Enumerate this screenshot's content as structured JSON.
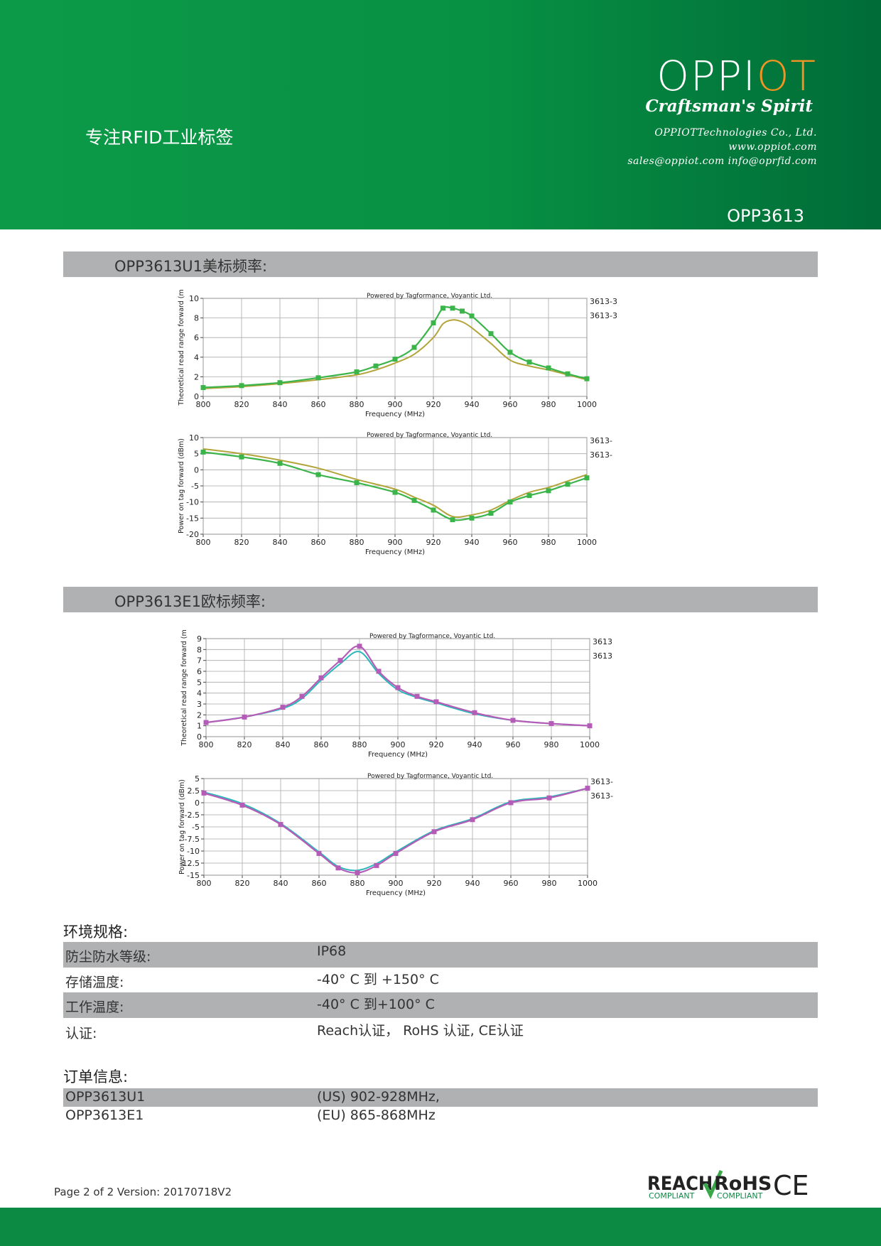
{
  "header": {
    "tagline": "专注RFID工业标签",
    "logo": {
      "part1": "OPPI",
      "part2": "OT",
      "slogan": "Craftsman's Spirit"
    },
    "company": "OPPIOTTechnologies Co., Ltd.",
    "website": "www.oppiot.com",
    "emails": "sales@oppiot.com  info@oprfid.com",
    "model": "OPP3613",
    "colors": {
      "green": "#0c9a48",
      "dark_green": "#006c38",
      "accent": "#f29423"
    }
  },
  "sections": {
    "us_title": "OPP3613U1美标频率:",
    "eu_title": "OPP3613E1欧标频率:"
  },
  "chart_data": [
    {
      "type": "line",
      "section": "US",
      "title": "Powered by Tagformance, Voyantic Ltd.",
      "xlabel": "Frequency (MHz)",
      "ylabel": "Theoretical read range forward (m",
      "xlim": [
        800,
        1000
      ],
      "ylim": [
        0,
        10
      ],
      "xticks": [
        800,
        820,
        840,
        860,
        880,
        900,
        920,
        940,
        960,
        980,
        1000
      ],
      "yticks": [
        0,
        2,
        4,
        6,
        8,
        10
      ],
      "grid": true,
      "legend": "right",
      "legend_entries": [
        "3613-3",
        "3613-3"
      ],
      "x": [
        800,
        820,
        840,
        860,
        880,
        890,
        900,
        910,
        920,
        925,
        930,
        935,
        940,
        950,
        960,
        970,
        980,
        990,
        1000
      ],
      "series": [
        {
          "color": "#3bb54a",
          "markers": true,
          "values": [
            0.9,
            1.1,
            1.4,
            1.9,
            2.5,
            3.1,
            3.8,
            5.0,
            7.5,
            9.0,
            9.0,
            8.7,
            8.2,
            6.4,
            4.5,
            3.5,
            2.9,
            2.3,
            1.8
          ]
        },
        {
          "color": "#b3a43a",
          "markers": false,
          "values": [
            0.8,
            1.0,
            1.3,
            1.7,
            2.2,
            2.7,
            3.4,
            4.3,
            6.0,
            7.4,
            7.8,
            7.6,
            7.0,
            5.4,
            3.7,
            3.1,
            2.7,
            2.2,
            1.7
          ]
        }
      ]
    },
    {
      "type": "line",
      "section": "US",
      "title": "Powered by Tagformance, Voyantic Ltd.",
      "xlabel": "Frequency (MHz)",
      "ylabel": "Power on tag forward (dBm)",
      "xlim": [
        800,
        1000
      ],
      "ylim": [
        -20,
        10
      ],
      "xticks": [
        800,
        820,
        840,
        860,
        880,
        900,
        920,
        940,
        960,
        980,
        1000
      ],
      "yticks": [
        -20,
        -15,
        -10,
        -5,
        0,
        5,
        10
      ],
      "grid": true,
      "legend": "right",
      "legend_entries": [
        "3613-",
        "3613-"
      ],
      "x": [
        800,
        820,
        840,
        860,
        880,
        900,
        910,
        920,
        930,
        940,
        950,
        960,
        970,
        980,
        990,
        1000
      ],
      "series": [
        {
          "color": "#3bb54a",
          "markers": true,
          "values": [
            5.5,
            4.0,
            2.0,
            -1.5,
            -4.0,
            -7.0,
            -9.5,
            -12.5,
            -15.5,
            -15.0,
            -13.5,
            -10.0,
            -8.0,
            -6.5,
            -4.5,
            -2.5
          ]
        },
        {
          "color": "#b3a43a",
          "markers": false,
          "values": [
            6.5,
            5.0,
            3.0,
            0.5,
            -3.0,
            -6.0,
            -8.5,
            -11.0,
            -14.5,
            -14.0,
            -12.5,
            -9.5,
            -7.0,
            -5.5,
            -3.5,
            -1.5
          ]
        }
      ]
    },
    {
      "type": "line",
      "section": "EU",
      "title": "Powered by Tagformance, Voyantic Ltd.",
      "xlabel": "Frequency (MHz)",
      "ylabel": "Theoretical read range forward (m",
      "xlim": [
        800,
        1000
      ],
      "ylim": [
        0,
        9
      ],
      "xticks": [
        800,
        820,
        840,
        860,
        880,
        900,
        920,
        940,
        960,
        980,
        1000
      ],
      "yticks": [
        0,
        1,
        2,
        3,
        4,
        5,
        6,
        7,
        8,
        9
      ],
      "grid": true,
      "legend": "right",
      "legend_entries": [
        "3613",
        "3613"
      ],
      "x": [
        800,
        820,
        840,
        850,
        860,
        870,
        880,
        890,
        900,
        910,
        920,
        940,
        960,
        980,
        1000
      ],
      "series": [
        {
          "color": "#b45cb8",
          "markers": true,
          "values": [
            1.3,
            1.8,
            2.7,
            3.7,
            5.4,
            7.0,
            8.3,
            6.0,
            4.5,
            3.7,
            3.2,
            2.2,
            1.5,
            1.2,
            1.0
          ]
        },
        {
          "color": "#2ab7b7",
          "markers": false,
          "values": [
            1.3,
            1.8,
            2.6,
            3.5,
            5.2,
            6.7,
            7.8,
            5.8,
            4.3,
            3.6,
            3.1,
            2.1,
            1.5,
            1.2,
            1.0
          ]
        }
      ]
    },
    {
      "type": "line",
      "section": "EU",
      "title": "Powered by Tagformance, Voyantic Ltd.",
      "xlabel": "Frequency (MHz)",
      "ylabel": "Power on tag forward (dBm)",
      "xlim": [
        800,
        1000
      ],
      "ylim": [
        -15,
        5
      ],
      "xticks": [
        800,
        820,
        840,
        860,
        880,
        900,
        920,
        940,
        960,
        980,
        1000
      ],
      "yticks": [
        -15,
        -12.5,
        -10,
        -7.5,
        -5,
        -2.5,
        0,
        2.5,
        5
      ],
      "grid": true,
      "legend": "right",
      "legend_entries": [
        "3613-",
        "3613-"
      ],
      "x": [
        800,
        820,
        840,
        860,
        870,
        880,
        890,
        900,
        920,
        940,
        960,
        980,
        1000
      ],
      "series": [
        {
          "color": "#b45cb8",
          "markers": true,
          "values": [
            2.0,
            -0.5,
            -4.5,
            -10.5,
            -13.5,
            -14.5,
            -13.0,
            -10.5,
            -6.0,
            -3.5,
            0.0,
            1.0,
            3.0
          ]
        },
        {
          "color": "#2ab7b7",
          "markers": false,
          "values": [
            2.2,
            -0.2,
            -4.3,
            -10.2,
            -13.2,
            -14.0,
            -12.6,
            -10.2,
            -5.8,
            -3.3,
            0.2,
            1.2,
            3.0
          ]
        }
      ]
    }
  ],
  "env": {
    "heading": "环境规格:",
    "rows": [
      {
        "label": "防尘防水等级:",
        "value": "IP68"
      },
      {
        "label": "存储温度:",
        "value": "-40° C 到 +150° C"
      },
      {
        "label": "工作温度:",
        "value": "-40° C 到+100° C"
      },
      {
        "label": "认证:",
        "value": "Reach认证，  RoHS 认证, CE认证"
      }
    ]
  },
  "order": {
    "heading": "订单信息:",
    "rows": [
      {
        "label": "OPP3613U1",
        "value": "(US) 902-928MHz,"
      },
      {
        "label": "OPP3613E1",
        "value": "(EU) 865-868MHz"
      }
    ]
  },
  "footer": {
    "page_info": "Page 2 of 2  Version: 20170718V2",
    "reach": "REACH",
    "reach_sub": "COMPLIANT",
    "rohs": "RoHS",
    "rohs_sub": "COMPLIANT",
    "ce": "CE"
  }
}
